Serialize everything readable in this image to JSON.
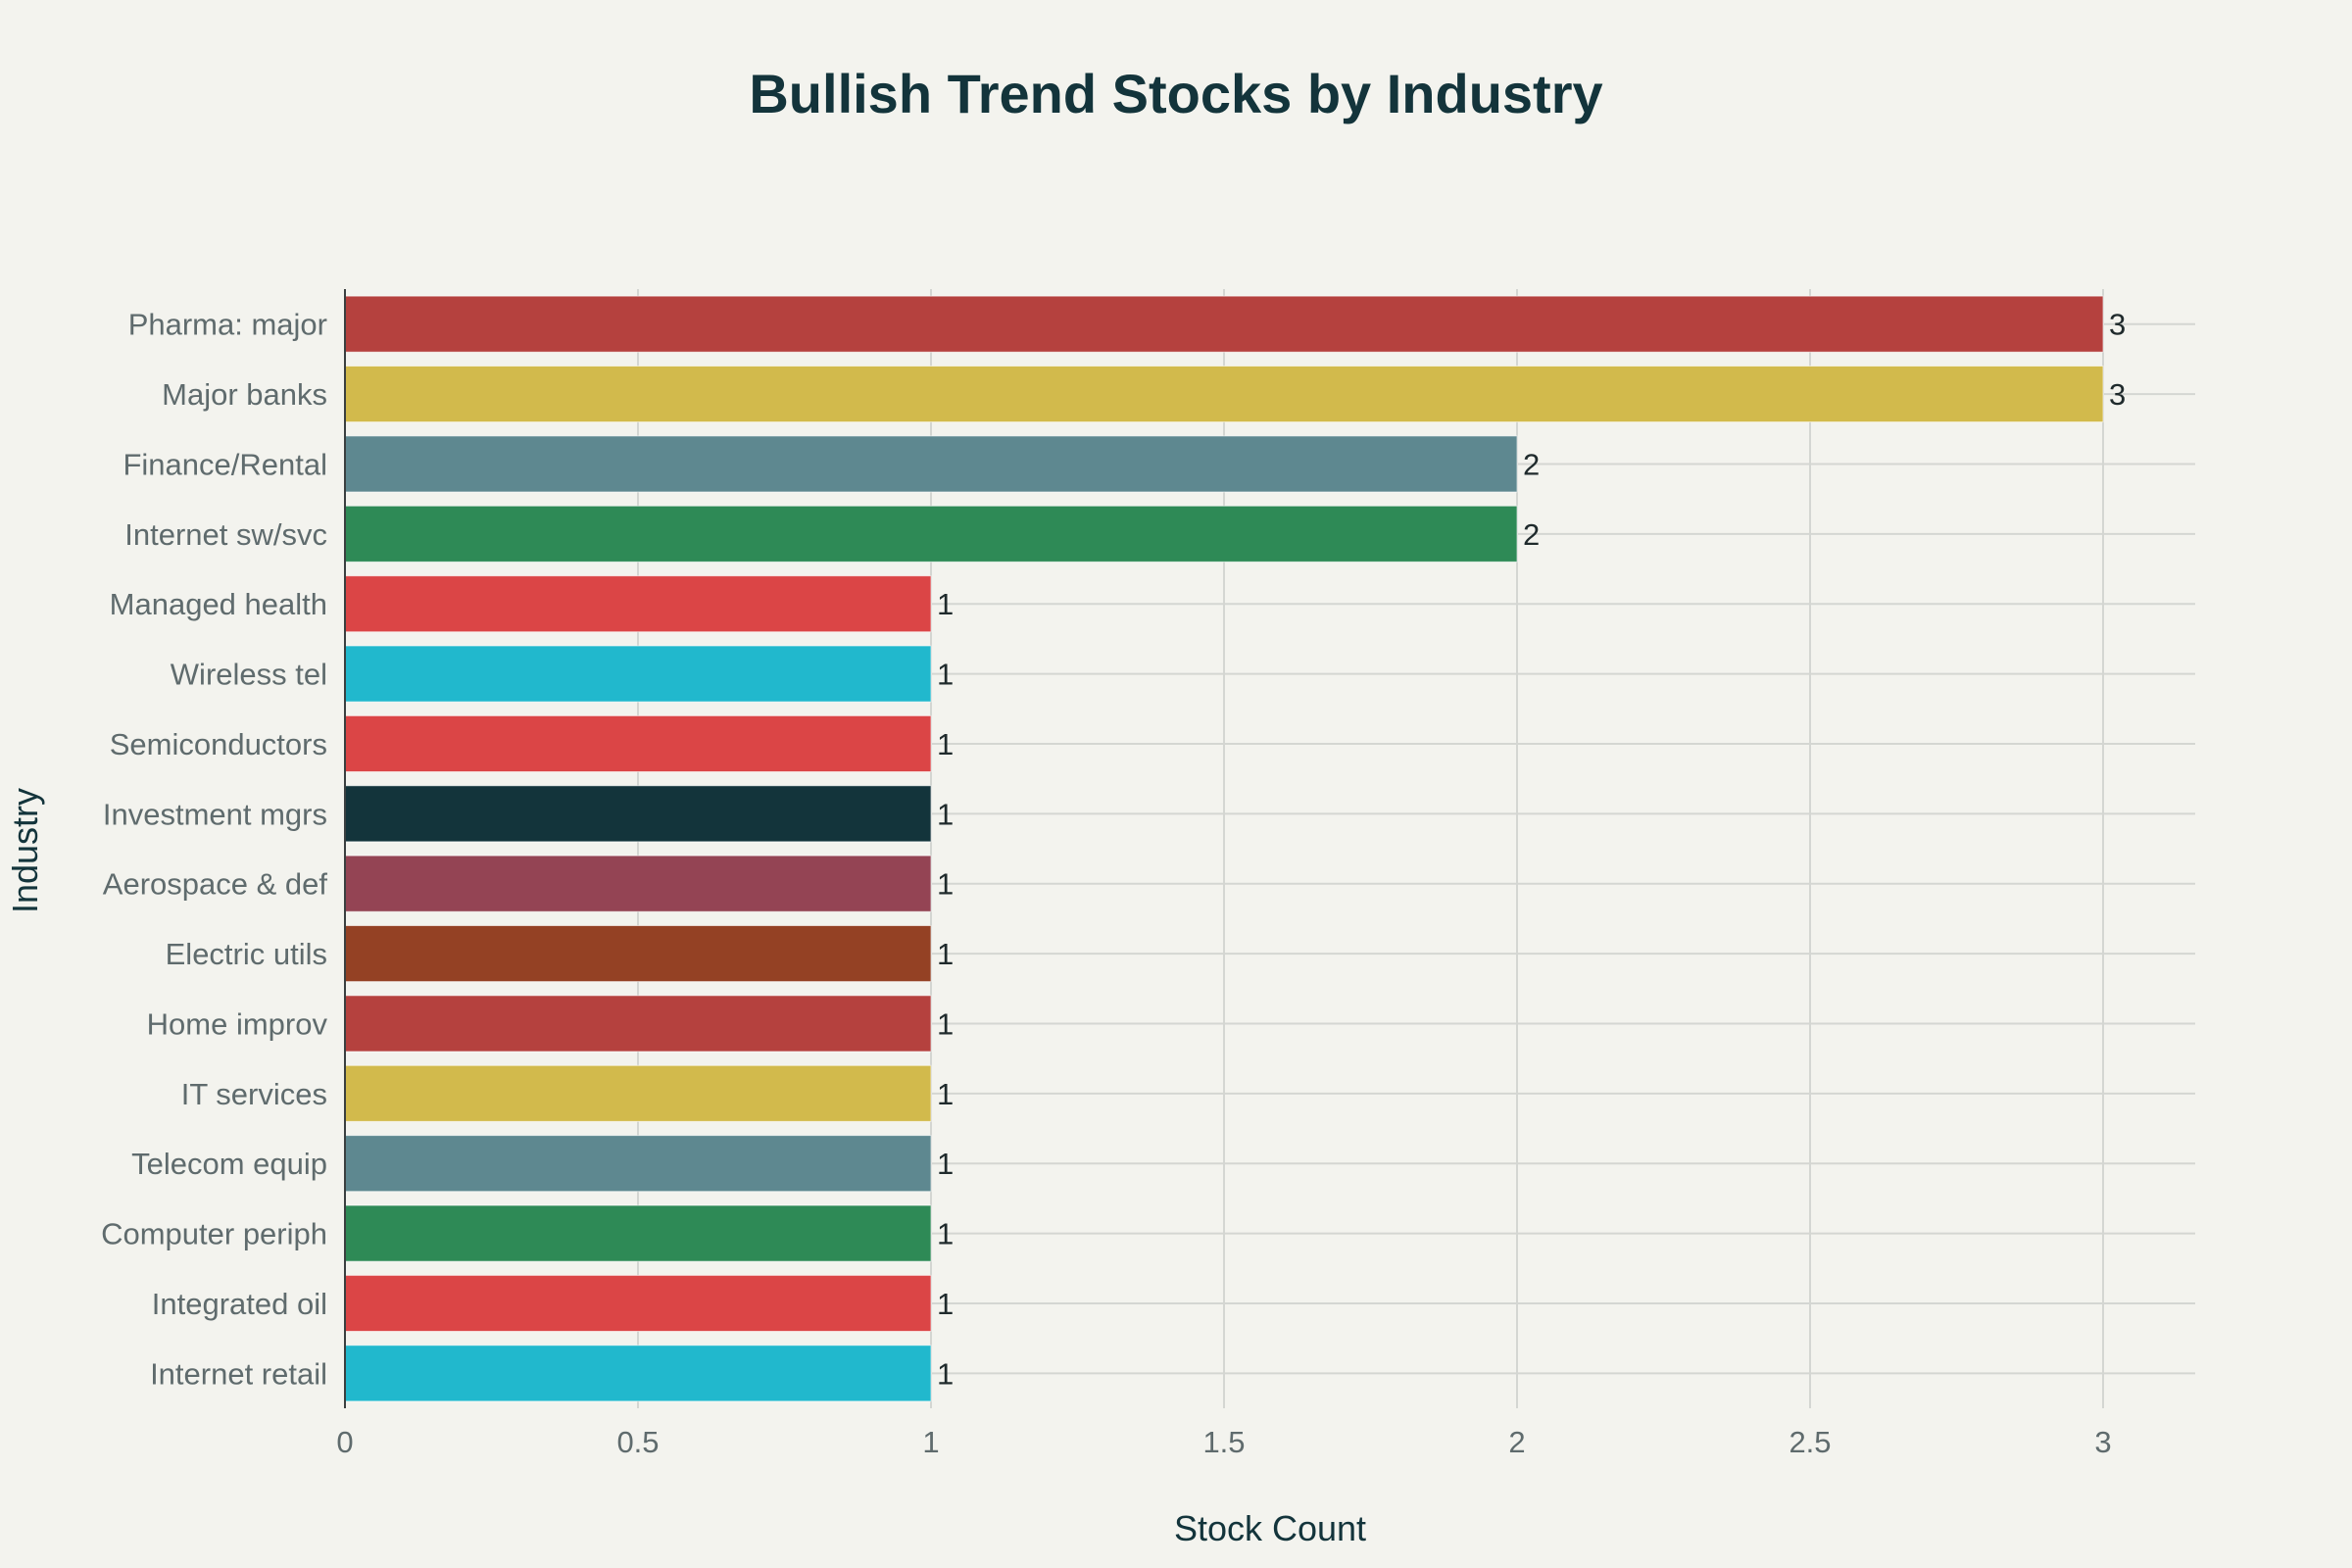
{
  "chart_data": {
    "type": "bar",
    "orientation": "horizontal",
    "title": "Bullish Trend Stocks by Industry",
    "xlabel": "Stock Count",
    "ylabel": "Industry",
    "xlim": [
      0,
      3.15
    ],
    "xticks": [
      "0",
      "0.5",
      "1",
      "1.5",
      "2",
      "2.5",
      "3"
    ],
    "xtick_values": [
      0,
      0.5,
      1,
      1.5,
      2,
      2.5,
      3
    ],
    "grid": true,
    "categories": [
      "Pharma: major",
      "Major banks",
      "Finance/Rental",
      "Internet sw/svc",
      "Managed health",
      "Wireless tel",
      "Semiconductors",
      "Investment mgrs",
      "Aerospace & def",
      "Electric utils",
      "Home improv",
      "IT services",
      "Telecom equip",
      "Computer periph",
      "Integrated oil",
      "Internet retail"
    ],
    "values": [
      3,
      3,
      2,
      2,
      1,
      1,
      1,
      1,
      1,
      1,
      1,
      1,
      1,
      1,
      1,
      1
    ],
    "data_labels": [
      "3",
      "3",
      "2",
      "2",
      "1",
      "1",
      "1",
      "1",
      "1",
      "1",
      "1",
      "1",
      "1",
      "1",
      "1",
      "1"
    ],
    "colors": [
      "#b5413e",
      "#d2ba4c",
      "#5e8890",
      "#2e8a56",
      "#db4546",
      "#21b8cd",
      "#db4546",
      "#13343b",
      "#944454",
      "#944124",
      "#b5413e",
      "#d2ba4c",
      "#5e8890",
      "#2e8a56",
      "#db4546",
      "#21b8cd"
    ],
    "background": "#f3f3ee",
    "gridline_color": "#d4d6d2",
    "text_color": "#13343b"
  }
}
